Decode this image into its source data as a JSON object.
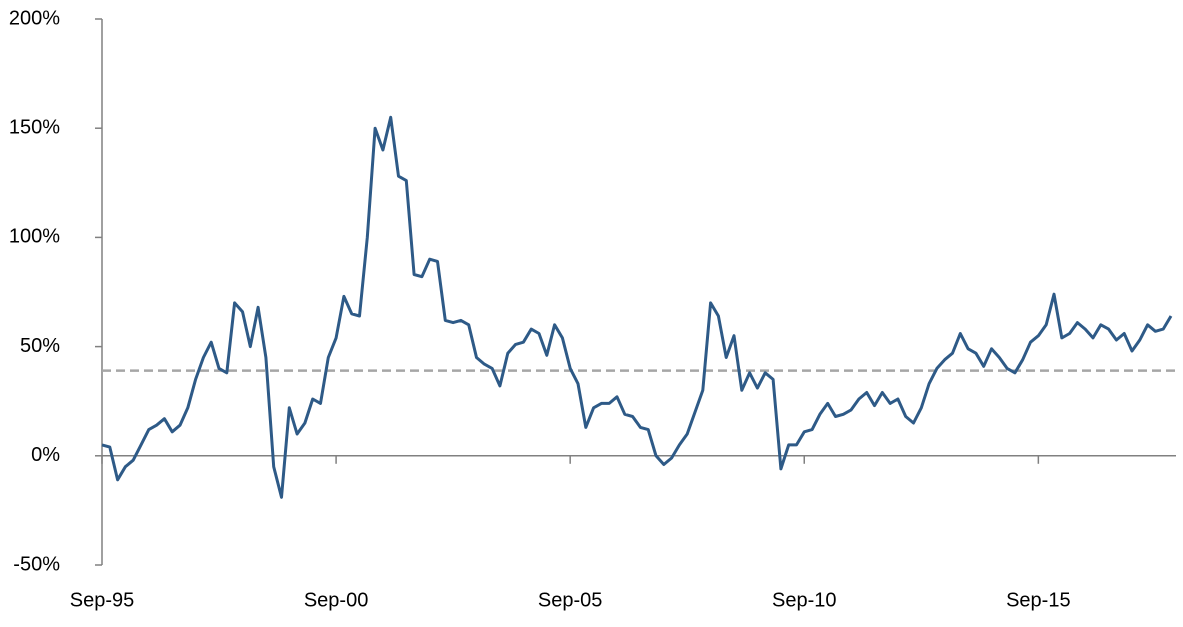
{
  "chart_data": {
    "type": "line",
    "categories": [
      "Sep-95",
      null,
      null,
      null,
      null,
      null,
      null,
      null,
      null,
      null,
      null,
      null,
      null,
      null,
      null,
      null,
      null,
      null,
      null,
      null,
      null,
      null,
      null,
      null,
      null,
      null,
      null,
      null,
      null,
      null,
      "Sep-00",
      null,
      null,
      null,
      null,
      null,
      null,
      null,
      null,
      null,
      null,
      null,
      null,
      null,
      null,
      null,
      null,
      null,
      null,
      null,
      null,
      null,
      null,
      null,
      null,
      null,
      null,
      null,
      null,
      null,
      "Sep-05",
      null,
      null,
      null,
      null,
      null,
      null,
      null,
      null,
      null,
      null,
      null,
      null,
      null,
      null,
      null,
      null,
      null,
      null,
      null,
      null,
      null,
      null,
      null,
      null,
      null,
      null,
      null,
      null,
      null,
      "Sep-10",
      null,
      null,
      null,
      null,
      null,
      null,
      null,
      null,
      null,
      null,
      null,
      null,
      null,
      null,
      null,
      null,
      null,
      null,
      null,
      null,
      null,
      null,
      null,
      null,
      null,
      null,
      null,
      null,
      null,
      "Sep-15",
      null,
      null,
      null,
      null,
      null,
      null,
      null,
      null,
      null,
      null,
      null,
      null,
      null,
      null,
      null,
      null,
      null
    ],
    "series": [
      {
        "color": "#2e5a87",
        "values": [
          5,
          4,
          -11,
          -5,
          -2,
          5,
          12,
          14,
          17,
          11,
          14,
          22,
          35,
          45,
          52,
          40,
          38,
          70,
          66,
          50,
          68,
          45,
          -5,
          -19,
          22,
          10,
          15,
          26,
          24,
          45,
          54,
          73,
          65,
          64,
          100,
          150,
          140,
          155,
          128,
          126,
          83,
          82,
          90,
          89,
          62,
          61,
          62,
          60,
          45,
          42,
          40,
          32,
          47,
          51,
          52,
          58,
          56,
          46,
          60,
          54,
          40,
          33,
          13,
          22,
          24,
          24,
          27,
          19,
          18,
          13,
          12,
          0,
          -4,
          -1,
          5,
          10,
          20,
          30,
          70,
          64,
          45,
          55,
          30,
          38,
          31,
          38,
          35,
          -6,
          5,
          5,
          11,
          12,
          19,
          24,
          18,
          19,
          21,
          26,
          29,
          23,
          29,
          24,
          26,
          18,
          15,
          22,
          33,
          40,
          44,
          47,
          56,
          49,
          47,
          41,
          49,
          45,
          40,
          38,
          44,
          52,
          55,
          60,
          74,
          54,
          56,
          61,
          58,
          54,
          60,
          58,
          53,
          56,
          48,
          53,
          60,
          57,
          58,
          64
        ]
      }
    ],
    "reference_line": {
      "value": 39,
      "color": "#a6a6a6",
      "style": "dashed"
    },
    "ylim": [
      -50,
      200
    ],
    "yticks": [
      {
        "value": -50,
        "label": "-50%"
      },
      {
        "value": 0,
        "label": "0%"
      },
      {
        "value": 50,
        "label": "50%"
      },
      {
        "value": 100,
        "label": "100%"
      },
      {
        "value": 150,
        "label": "150%"
      },
      {
        "value": 200,
        "label": "200%"
      }
    ]
  }
}
